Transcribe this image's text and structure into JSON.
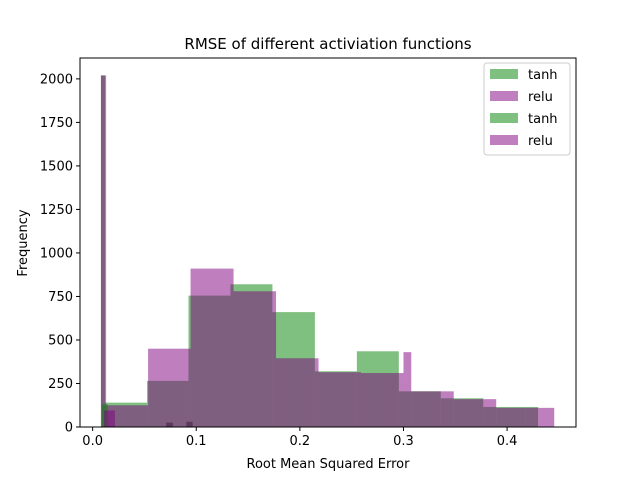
{
  "chart_data": {
    "type": "bar",
    "title": "RMSE of different activiation functions",
    "xlabel": "Root Mean Squared Error",
    "ylabel": "Frequency",
    "xlim": [
      -0.0122,
      0.4665
    ],
    "ylim": [
      0,
      2120
    ],
    "xticks": [
      0.0,
      0.1,
      0.2,
      0.3,
      0.4
    ],
    "xtick_labels": [
      "0.0",
      "0.1",
      "0.2",
      "0.3",
      "0.4"
    ],
    "yticks": [
      0,
      250,
      500,
      750,
      1000,
      1250,
      1500,
      1750,
      2000
    ],
    "ytick_labels": [
      "0",
      "250",
      "500",
      "750",
      "1000",
      "1250",
      "1500",
      "1750",
      "2000"
    ],
    "grid": false,
    "legend_position": "top-right",
    "series": [
      {
        "name": "tanh",
        "color": "#008000",
        "opacity": 0.5,
        "bins": [
          {
            "x0": 0.008,
            "x1": 0.012,
            "value": 2020
          },
          {
            "x0": 0.012,
            "x1": 0.0525,
            "value": 140
          },
          {
            "x0": 0.0525,
            "x1": 0.0925,
            "value": 265
          },
          {
            "x0": 0.0925,
            "x1": 0.133,
            "value": 755
          },
          {
            "x0": 0.133,
            "x1": 0.1735,
            "value": 820
          },
          {
            "x0": 0.1735,
            "x1": 0.2145,
            "value": 660
          },
          {
            "x0": 0.2145,
            "x1": 0.255,
            "value": 320
          },
          {
            "x0": 0.255,
            "x1": 0.2955,
            "value": 435
          },
          {
            "x0": 0.2955,
            "x1": 0.336,
            "value": 205
          },
          {
            "x0": 0.336,
            "x1": 0.377,
            "value": 165
          },
          {
            "x0": 0.377,
            "x1": 0.4175,
            "value": 115
          },
          {
            "x0": 0.4175,
            "x1": 0.43,
            "value": 115
          }
        ]
      },
      {
        "name": "relu",
        "color": "#800080",
        "opacity": 0.5,
        "bins": [
          {
            "x0": 0.008,
            "x1": 0.013,
            "value": 2020
          },
          {
            "x0": 0.013,
            "x1": 0.0535,
            "value": 125
          },
          {
            "x0": 0.0535,
            "x1": 0.0945,
            "value": 450
          },
          {
            "x0": 0.0945,
            "x1": 0.136,
            "value": 910
          },
          {
            "x0": 0.136,
            "x1": 0.177,
            "value": 780
          },
          {
            "x0": 0.177,
            "x1": 0.218,
            "value": 395
          },
          {
            "x0": 0.218,
            "x1": 0.259,
            "value": 315
          },
          {
            "x0": 0.259,
            "x1": 0.3,
            "value": 310
          },
          {
            "x0": 0.3,
            "x1": 0.3075,
            "value": 430
          },
          {
            "x0": 0.3075,
            "x1": 0.3485,
            "value": 205
          },
          {
            "x0": 0.3485,
            "x1": 0.3895,
            "value": 160
          },
          {
            "x0": 0.3895,
            "x1": 0.4305,
            "value": 110
          },
          {
            "x0": 0.4305,
            "x1": 0.4455,
            "value": 110
          }
        ]
      },
      {
        "name": "tanh",
        "color": "#008000",
        "opacity": 0.5,
        "bins": [
          {
            "x0": 0.009,
            "x1": 0.0145,
            "value": 130
          },
          {
            "x0": 0.071,
            "x1": 0.0775,
            "value": 25
          },
          {
            "x0": 0.0905,
            "x1": 0.0965,
            "value": 30
          }
        ]
      },
      {
        "name": "relu",
        "color": "#800080",
        "opacity": 0.5,
        "bins": [
          {
            "x0": 0.011,
            "x1": 0.0215,
            "value": 95
          },
          {
            "x0": 0.071,
            "x1": 0.0775,
            "value": 25
          },
          {
            "x0": 0.0905,
            "x1": 0.0965,
            "value": 30
          }
        ]
      }
    ]
  }
}
